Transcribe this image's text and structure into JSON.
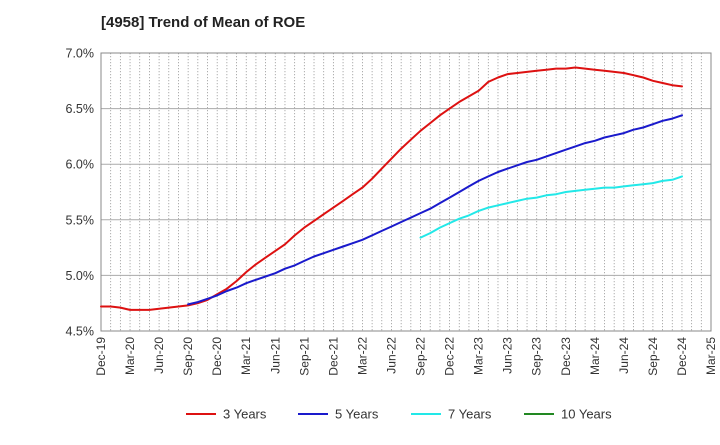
{
  "chart_data": {
    "type": "line",
    "title": "[4958]  Trend of Mean of ROE",
    "xlabel": "",
    "ylabel": "",
    "x_ticks": [
      "Dec-19",
      "Mar-20",
      "Jun-20",
      "Sep-20",
      "Dec-20",
      "Mar-21",
      "Jun-21",
      "Sep-21",
      "Dec-21",
      "Mar-22",
      "Jun-22",
      "Sep-22",
      "Dec-22",
      "Mar-23",
      "Jun-23",
      "Sep-23",
      "Dec-23",
      "Mar-24",
      "Jun-24",
      "Sep-24",
      "Dec-24",
      "Mar-25"
    ],
    "y_ticks": [
      "4.5%",
      "5.0%",
      "5.5%",
      "6.0%",
      "6.5%",
      "7.0%"
    ],
    "ylim": [
      4.5,
      7.0
    ],
    "grid": {
      "vertical": "dotted",
      "horizontal": "solid"
    },
    "legend_position": "bottom",
    "series": [
      {
        "name": "3 Years",
        "color": "#dd1111",
        "x": [
          "2019-12",
          "2020-01",
          "2020-02",
          "2020-03",
          "2020-04",
          "2020-05",
          "2020-06",
          "2020-07",
          "2020-08",
          "2020-09",
          "2020-10",
          "2020-11",
          "2020-12",
          "2021-01",
          "2021-02",
          "2021-03",
          "2021-04",
          "2021-05",
          "2021-06",
          "2021-07",
          "2021-08",
          "2021-09",
          "2021-10",
          "2021-11",
          "2021-12",
          "2022-01",
          "2022-02",
          "2022-03",
          "2022-04",
          "2022-05",
          "2022-06",
          "2022-07",
          "2022-08",
          "2022-09",
          "2022-10",
          "2022-11",
          "2022-12",
          "2023-01",
          "2023-02",
          "2023-03",
          "2023-04",
          "2023-05",
          "2023-06",
          "2023-07",
          "2023-08",
          "2023-09",
          "2023-10",
          "2023-11",
          "2023-12",
          "2024-01",
          "2024-02",
          "2024-03",
          "2024-04",
          "2024-05",
          "2024-06",
          "2024-07",
          "2024-08",
          "2024-09",
          "2024-10",
          "2024-11",
          "2024-12"
        ],
        "values": [
          4.72,
          4.72,
          4.71,
          4.69,
          4.69,
          4.69,
          4.7,
          4.71,
          4.72,
          4.73,
          4.75,
          4.78,
          4.83,
          4.88,
          4.95,
          5.03,
          5.1,
          5.16,
          5.22,
          5.28,
          5.36,
          5.43,
          5.49,
          5.55,
          5.61,
          5.67,
          5.73,
          5.79,
          5.87,
          5.96,
          6.05,
          6.14,
          6.22,
          6.3,
          6.37,
          6.44,
          6.5,
          6.56,
          6.61,
          6.66,
          6.74,
          6.78,
          6.81,
          6.82,
          6.83,
          6.84,
          6.85,
          6.86,
          6.86,
          6.87,
          6.86,
          6.85,
          6.84,
          6.83,
          6.82,
          6.8,
          6.78,
          6.75,
          6.73,
          6.71,
          6.7
        ]
      },
      {
        "name": "5 Years",
        "color": "#1a1acc",
        "x": [
          "2020-09",
          "2020-10",
          "2020-11",
          "2020-12",
          "2021-01",
          "2021-02",
          "2021-03",
          "2021-04",
          "2021-05",
          "2021-06",
          "2021-07",
          "2021-08",
          "2021-09",
          "2021-10",
          "2021-11",
          "2021-12",
          "2022-01",
          "2022-02",
          "2022-03",
          "2022-04",
          "2022-05",
          "2022-06",
          "2022-07",
          "2022-08",
          "2022-09",
          "2022-10",
          "2022-11",
          "2022-12",
          "2023-01",
          "2023-02",
          "2023-03",
          "2023-04",
          "2023-05",
          "2023-06",
          "2023-07",
          "2023-08",
          "2023-09",
          "2023-10",
          "2023-11",
          "2023-12",
          "2024-01",
          "2024-02",
          "2024-03",
          "2024-04",
          "2024-05",
          "2024-06",
          "2024-07",
          "2024-08",
          "2024-09",
          "2024-10",
          "2024-11",
          "2024-12"
        ],
        "values": [
          4.74,
          4.76,
          4.79,
          4.82,
          4.86,
          4.89,
          4.93,
          4.96,
          4.99,
          5.02,
          5.06,
          5.09,
          5.13,
          5.17,
          5.2,
          5.23,
          5.26,
          5.29,
          5.32,
          5.36,
          5.4,
          5.44,
          5.48,
          5.52,
          5.56,
          5.6,
          5.65,
          5.7,
          5.75,
          5.8,
          5.85,
          5.89,
          5.93,
          5.96,
          5.99,
          6.02,
          6.04,
          6.07,
          6.1,
          6.13,
          6.16,
          6.19,
          6.21,
          6.24,
          6.26,
          6.28,
          6.31,
          6.33,
          6.36,
          6.39,
          6.41,
          6.44
        ]
      },
      {
        "name": "7 Years",
        "color": "#22e8e8",
        "x": [
          "2022-09",
          "2022-10",
          "2022-11",
          "2022-12",
          "2023-01",
          "2023-02",
          "2023-03",
          "2023-04",
          "2023-05",
          "2023-06",
          "2023-07",
          "2023-08",
          "2023-09",
          "2023-10",
          "2023-11",
          "2023-12",
          "2024-01",
          "2024-02",
          "2024-03",
          "2024-04",
          "2024-05",
          "2024-06",
          "2024-07",
          "2024-08",
          "2024-09",
          "2024-10",
          "2024-11",
          "2024-12"
        ],
        "values": [
          5.34,
          5.38,
          5.43,
          5.47,
          5.51,
          5.54,
          5.58,
          5.61,
          5.63,
          5.65,
          5.67,
          5.69,
          5.7,
          5.72,
          5.73,
          5.75,
          5.76,
          5.77,
          5.78,
          5.79,
          5.79,
          5.8,
          5.81,
          5.82,
          5.83,
          5.85,
          5.86,
          5.89
        ]
      },
      {
        "name": "10 Years",
        "color": "#228822",
        "x": [],
        "values": []
      }
    ]
  }
}
